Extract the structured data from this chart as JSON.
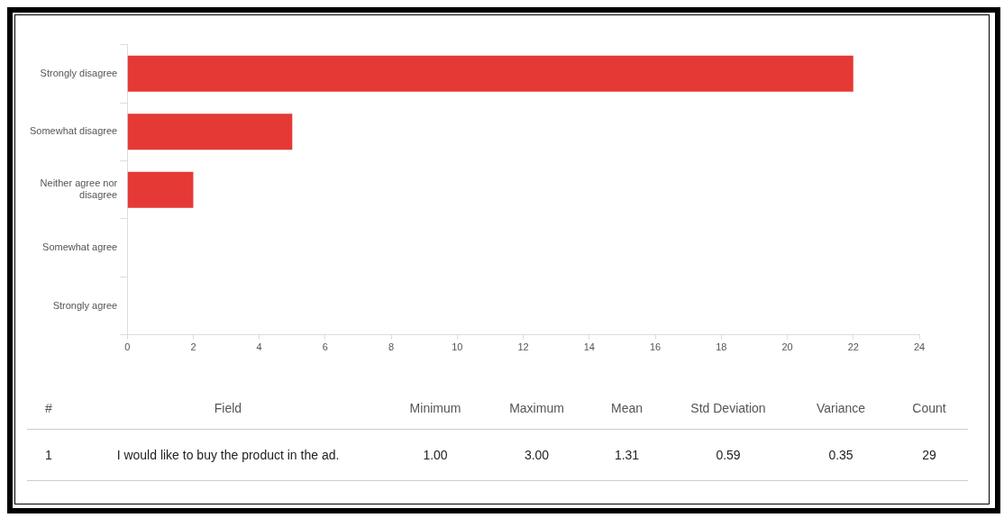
{
  "chart_data": {
    "type": "bar",
    "orientation": "horizontal",
    "categories": [
      "Strongly disagree",
      "Somewhat disagree",
      "Neither agree nor disagree",
      "Somewhat agree",
      "Strongly agree"
    ],
    "values": [
      22,
      5,
      2,
      0,
      0
    ],
    "color": "#e53935",
    "xlim": [
      0,
      24
    ],
    "xticks": [
      0,
      2,
      4,
      6,
      8,
      10,
      12,
      14,
      16,
      18,
      20,
      22,
      24
    ],
    "grid": false,
    "legend": false,
    "annotations": [
      "#",
      "Field",
      "Minimum",
      "Maximum",
      "Mean",
      "Std Deviation",
      "Variance",
      "Count",
      "1",
      "I would like to buy the product in the ad.",
      "1.00",
      "3.00",
      "1.31",
      "0.59",
      "0.35",
      "29"
    ]
  }
}
